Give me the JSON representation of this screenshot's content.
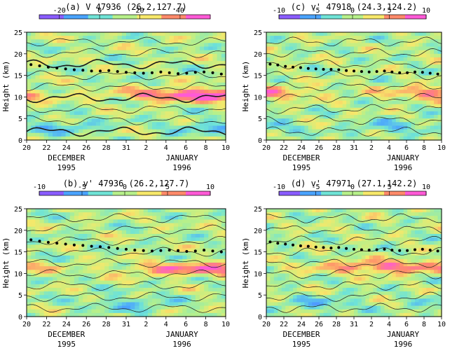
{
  "chart_data": [
    {
      "type": "heatmap",
      "title": "(a) V 47936 (26.2,127.7)",
      "colorbar_ticks": [
        "-20",
        "0",
        "20",
        "40"
      ],
      "colorbar_range": [
        -30,
        55
      ],
      "ylabel": "Height (km)",
      "y_ticks": [
        "0",
        "5",
        "10",
        "15",
        "20",
        "25"
      ],
      "ylim": [
        0,
        25
      ],
      "x_ticks": [
        "20",
        "22",
        "24",
        "26",
        "28",
        "31",
        "2",
        "4",
        "6",
        "8",
        "10"
      ],
      "month_labels": [
        "DECEMBER",
        "JANUARY"
      ],
      "year_labels": [
        "1995",
        "1996"
      ],
      "tropopause_km": [
        17.5,
        17.2,
        16.9,
        16.7,
        16.5,
        16.3,
        16.2,
        16.0,
        16.0,
        16.1,
        15.9,
        15.7,
        15.6,
        15.5,
        15.6,
        15.8,
        15.6,
        15.4,
        15.5,
        15.7,
        15.8,
        15.6,
        15.3
      ],
      "jet": {
        "height_km": 10.5,
        "center_day_index": 9.0
      }
    },
    {
      "type": "heatmap",
      "title": "(c) v' 47918 (24.3,124.2)",
      "colorbar_ticks": [
        "-10",
        "-5",
        "0",
        "5",
        "10"
      ],
      "colorbar_range": [
        -10,
        10
      ],
      "ylabel": "Height (km)",
      "y_ticks": [
        "0",
        "5",
        "10",
        "15",
        "20",
        "25"
      ],
      "ylim": [
        0,
        25
      ],
      "x_ticks": [
        "20",
        "22",
        "24",
        "26",
        "28",
        "31",
        "2",
        "4",
        "6",
        "8",
        "10"
      ],
      "month_labels": [
        "DECEMBER",
        "JANUARY"
      ],
      "year_labels": [
        "1995",
        "1996"
      ],
      "tropopause_km": [
        17.6,
        17.4,
        17.1,
        16.9,
        16.8,
        16.6,
        16.5,
        16.4,
        16.4,
        16.3,
        16.1,
        16.0,
        15.9,
        15.8,
        15.9,
        16.0,
        15.8,
        15.6,
        15.6,
        15.8,
        15.7,
        15.5,
        15.3
      ],
      "jet": {
        "height_km": 11.0,
        "center_day_index": 11.0
      }
    },
    {
      "type": "heatmap",
      "title": "(b) v' 47936 (26.2,127.7)",
      "colorbar_ticks": [
        "-10",
        "-5",
        "0",
        "5",
        "10"
      ],
      "colorbar_range": [
        -10,
        10
      ],
      "ylabel": "Height (km)",
      "y_ticks": [
        "0",
        "5",
        "10",
        "15",
        "20",
        "25"
      ],
      "ylim": [
        0,
        25
      ],
      "x_ticks": [
        "20",
        "22",
        "24",
        "26",
        "28",
        "31",
        "2",
        "4",
        "6",
        "8",
        "10"
      ],
      "month_labels": [
        "DECEMBER",
        "JANUARY"
      ],
      "year_labels": [
        "1995",
        "1996"
      ],
      "tropopause_km": [
        17.8,
        17.5,
        17.2,
        17.0,
        16.8,
        16.6,
        16.5,
        16.3,
        16.2,
        16.0,
        15.8,
        15.6,
        15.4,
        15.3,
        15.2,
        15.3,
        15.4,
        15.3,
        15.1,
        15.2,
        15.4,
        15.2,
        15.0
      ],
      "jet": {
        "height_km": 11.0,
        "center_day_index": 9.0
      }
    },
    {
      "type": "heatmap",
      "title": "(d) v' 47971 (27.1,142.2)",
      "colorbar_ticks": [
        "-10",
        "-5",
        "0",
        "5",
        "10"
      ],
      "colorbar_range": [
        -10,
        10
      ],
      "ylabel": "Height (km)",
      "y_ticks": [
        "0",
        "5",
        "10",
        "15",
        "20",
        "25"
      ],
      "ylim": [
        0,
        25
      ],
      "x_ticks": [
        "20",
        "22",
        "24",
        "26",
        "28",
        "31",
        "2",
        "4",
        "6",
        "8",
        "10"
      ],
      "month_labels": [
        "DECEMBER",
        "JANUARY"
      ],
      "year_labels": [
        "1995",
        "1996"
      ],
      "tropopause_km": [
        17.3,
        17.0,
        16.8,
        16.6,
        16.4,
        16.3,
        16.1,
        16.0,
        15.9,
        16.0,
        15.8,
        15.6,
        15.5,
        15.4,
        15.5,
        15.6,
        15.4,
        15.3,
        15.3,
        15.5,
        15.6,
        15.4,
        15.2
      ],
      "jet": {
        "height_km": 11.5,
        "center_day_index": 7.0
      }
    }
  ]
}
